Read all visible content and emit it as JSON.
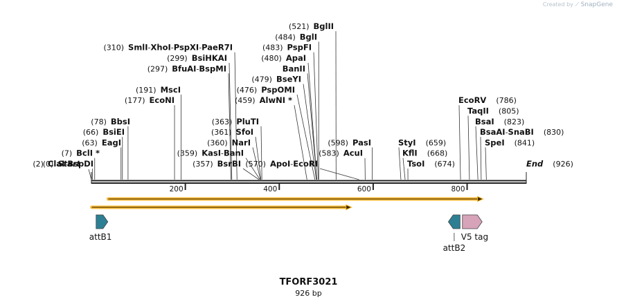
{
  "watermark": {
    "prefix": "Created by",
    "brand": "SnapGene"
  },
  "map": {
    "name": "TFORF3021",
    "length_label": "926 bp",
    "length": 926,
    "start_label": "Start",
    "start_pos": "(0)",
    "end_label": "End",
    "end_pos": "(926)",
    "ticks": [
      {
        "value": 200,
        "label": "200"
      },
      {
        "value": 400,
        "label": "400"
      },
      {
        "value": 600,
        "label": "600"
      },
      {
        "value": 800,
        "label": "800"
      }
    ],
    "site_rows": [
      {
        "row": 0,
        "side": "left",
        "anchor": 135,
        "pos": "(2)",
        "parts": [
          {
            "name": "ClaI",
            "site": 2
          },
          {
            "name": "BspDI",
            "site": 2
          }
        ]
      },
      {
        "row": 1,
        "side": "left",
        "anchor": 144,
        "pos": "(7)",
        "parts": [
          {
            "name": "BclI *",
            "site": 7
          }
        ]
      },
      {
        "row": 2,
        "side": "left",
        "anchor": 175,
        "pos": "(63)",
        "parts": [
          {
            "name": "EagI",
            "site": 63
          }
        ]
      },
      {
        "row": 3,
        "side": "left",
        "anchor": 180,
        "pos": "(66)",
        "parts": [
          {
            "name": "BsiEI",
            "site": 66
          }
        ]
      },
      {
        "row": 4,
        "side": "left",
        "anchor": 188,
        "pos": "(78)",
        "parts": [
          {
            "name": "BbsI",
            "site": 78
          }
        ]
      },
      {
        "row": 6,
        "side": "left",
        "anchor": 252,
        "pos": "(177)",
        "parts": [
          {
            "name": "EcoNI",
            "site": 177
          }
        ]
      },
      {
        "row": 7,
        "side": "left",
        "anchor": 261,
        "pos": "(191)",
        "parts": [
          {
            "name": "MscI",
            "site": 191
          }
        ]
      },
      {
        "row": 9,
        "side": "left",
        "anchor": 327,
        "pos": "(297)",
        "parts": [
          {
            "name": "BfuAI",
            "site": 297
          },
          {
            "name": "BspMI",
            "site": 297
          }
        ]
      },
      {
        "row": 10,
        "side": "left",
        "anchor": 328,
        "pos": "(299)",
        "parts": [
          {
            "name": "BsiHKAI",
            "site": 299
          }
        ]
      },
      {
        "row": 11,
        "side": "left",
        "anchor": 336,
        "pos": "(310)",
        "parts": [
          {
            "name": "SmlI",
            "site": 310
          },
          {
            "name": "XhoI",
            "site": 310
          },
          {
            "name": "PspXI",
            "site": 310
          },
          {
            "name": "PaeR7I",
            "site": 310
          }
        ]
      },
      {
        "row": 0,
        "side": "left",
        "anchor": 348,
        "pos": "(357)",
        "parts": [
          {
            "name": "BsrBI",
            "site": 357
          }
        ]
      },
      {
        "row": 1,
        "side": "left",
        "anchor": 352,
        "pos": "(359)",
        "parts": [
          {
            "name": "KasI",
            "site": 359
          },
          {
            "name": "BanI",
            "site": 359
          }
        ]
      },
      {
        "row": 2,
        "side": "left",
        "anchor": 362,
        "pos": "(360)",
        "parts": [
          {
            "name": "NarI",
            "site": 360
          }
        ]
      },
      {
        "row": 3,
        "side": "left",
        "anchor": 366,
        "pos": "(361)",
        "parts": [
          {
            "name": "SfoI",
            "site": 361
          }
        ]
      },
      {
        "row": 4,
        "side": "left",
        "anchor": 374,
        "pos": "(363)",
        "parts": [
          {
            "name": "PluTI",
            "site": 363
          }
        ]
      },
      {
        "row": 6,
        "side": "left",
        "anchor": 422,
        "pos": "(459)",
        "parts": [
          {
            "name": "AlwNI *",
            "site": 459
          }
        ]
      },
      {
        "row": 7,
        "side": "left",
        "anchor": 426,
        "pos": "(476)",
        "parts": [
          {
            "name": "PspOMI",
            "site": 476
          }
        ]
      },
      {
        "row": 8,
        "side": "left",
        "anchor": 435,
        "pos": "(479)",
        "parts": [
          {
            "name": "BseYI",
            "site": 479
          }
        ]
      },
      {
        "row": 9,
        "side": "left",
        "anchor": 441,
        "pos": "",
        "parts": [
          {
            "name": "BanII",
            "site": 480
          }
        ]
      },
      {
        "row": 10,
        "side": "left",
        "anchor": 442,
        "pos": "(480)",
        "parts": [
          {
            "name": "ApaI",
            "site": 480
          }
        ]
      },
      {
        "row": 11,
        "side": "left",
        "anchor": 450,
        "pos": "(483)",
        "parts": [
          {
            "name": "PspFI",
            "site": 483
          }
        ]
      },
      {
        "row": 12,
        "side": "left",
        "anchor": 458,
        "pos": "(484)",
        "parts": [
          {
            "name": "BglI",
            "site": 484
          }
        ]
      },
      {
        "row": 13,
        "side": "left",
        "anchor": 482,
        "pos": "(521)",
        "parts": [
          {
            "name": "BglII",
            "site": 521
          }
        ]
      },
      {
        "row": 0,
        "side": "left",
        "anchor": 459,
        "pos": "(570)",
        "parts": [
          {
            "name": "ApoI",
            "site": 570
          },
          {
            "name": "EcoRI",
            "site": 570
          }
        ]
      },
      {
        "row": 1,
        "side": "left",
        "anchor": 524,
        "pos": "(583)",
        "parts": [
          {
            "name": "AcuI",
            "site": 583
          }
        ]
      },
      {
        "row": 2,
        "side": "left",
        "anchor": 536,
        "pos": "(598)",
        "parts": [
          {
            "name": "PasI",
            "site": 598
          }
        ]
      },
      {
        "row": 0,
        "side": "right",
        "anchor": 588,
        "pos": "(674)",
        "parts": [
          {
            "name": "TsoI",
            "site": 674
          }
        ]
      },
      {
        "row": 1,
        "side": "right",
        "anchor": 581,
        "pos": "(668)",
        "parts": [
          {
            "name": "KflI",
            "site": 668
          }
        ]
      },
      {
        "row": 2,
        "side": "right",
        "anchor": 575,
        "pos": "(659)",
        "parts": [
          {
            "name": "StyI",
            "site": 659
          }
        ]
      },
      {
        "row": 2,
        "side": "right",
        "anchor": 700,
        "pos": "(841)",
        "parts": [
          {
            "name": "SpeI",
            "site": 841
          }
        ]
      },
      {
        "row": 3,
        "side": "right",
        "anchor": 693,
        "pos": "(830)",
        "parts": [
          {
            "name": "BsaAI",
            "site": 830
          },
          {
            "name": "SnaBI",
            "site": 830
          }
        ]
      },
      {
        "row": 4,
        "side": "right",
        "anchor": 686,
        "pos": "(823)",
        "parts": [
          {
            "name": "BsaI",
            "site": 823
          }
        ]
      },
      {
        "row": 5,
        "side": "right",
        "anchor": 675,
        "pos": "(805)",
        "parts": [
          {
            "name": "TaqII",
            "site": 805
          }
        ]
      },
      {
        "row": 6,
        "side": "right",
        "anchor": 662,
        "pos": "(786)",
        "parts": [
          {
            "name": "EcoRV",
            "site": 786
          }
        ]
      }
    ],
    "orfs": [
      {
        "start": 36,
        "end": 834,
        "color": "#f5b21b"
      },
      {
        "start": 1,
        "end": 554,
        "color": "#f5b21b"
      }
    ],
    "features": [
      {
        "name": "attB1",
        "start": 10,
        "end": 35,
        "direction": "forward",
        "color": "#2e7f93",
        "label_pos": "below-left"
      },
      {
        "name": "attB2",
        "start": 760,
        "end": 785,
        "direction": "reverse",
        "color": "#2e7f93",
        "label_pos": "below-far"
      },
      {
        "name": "V5 tag",
        "start": 790,
        "end": 832,
        "direction": "forward",
        "color": "#d6a3b9",
        "label_pos": "below-right"
      }
    ]
  }
}
